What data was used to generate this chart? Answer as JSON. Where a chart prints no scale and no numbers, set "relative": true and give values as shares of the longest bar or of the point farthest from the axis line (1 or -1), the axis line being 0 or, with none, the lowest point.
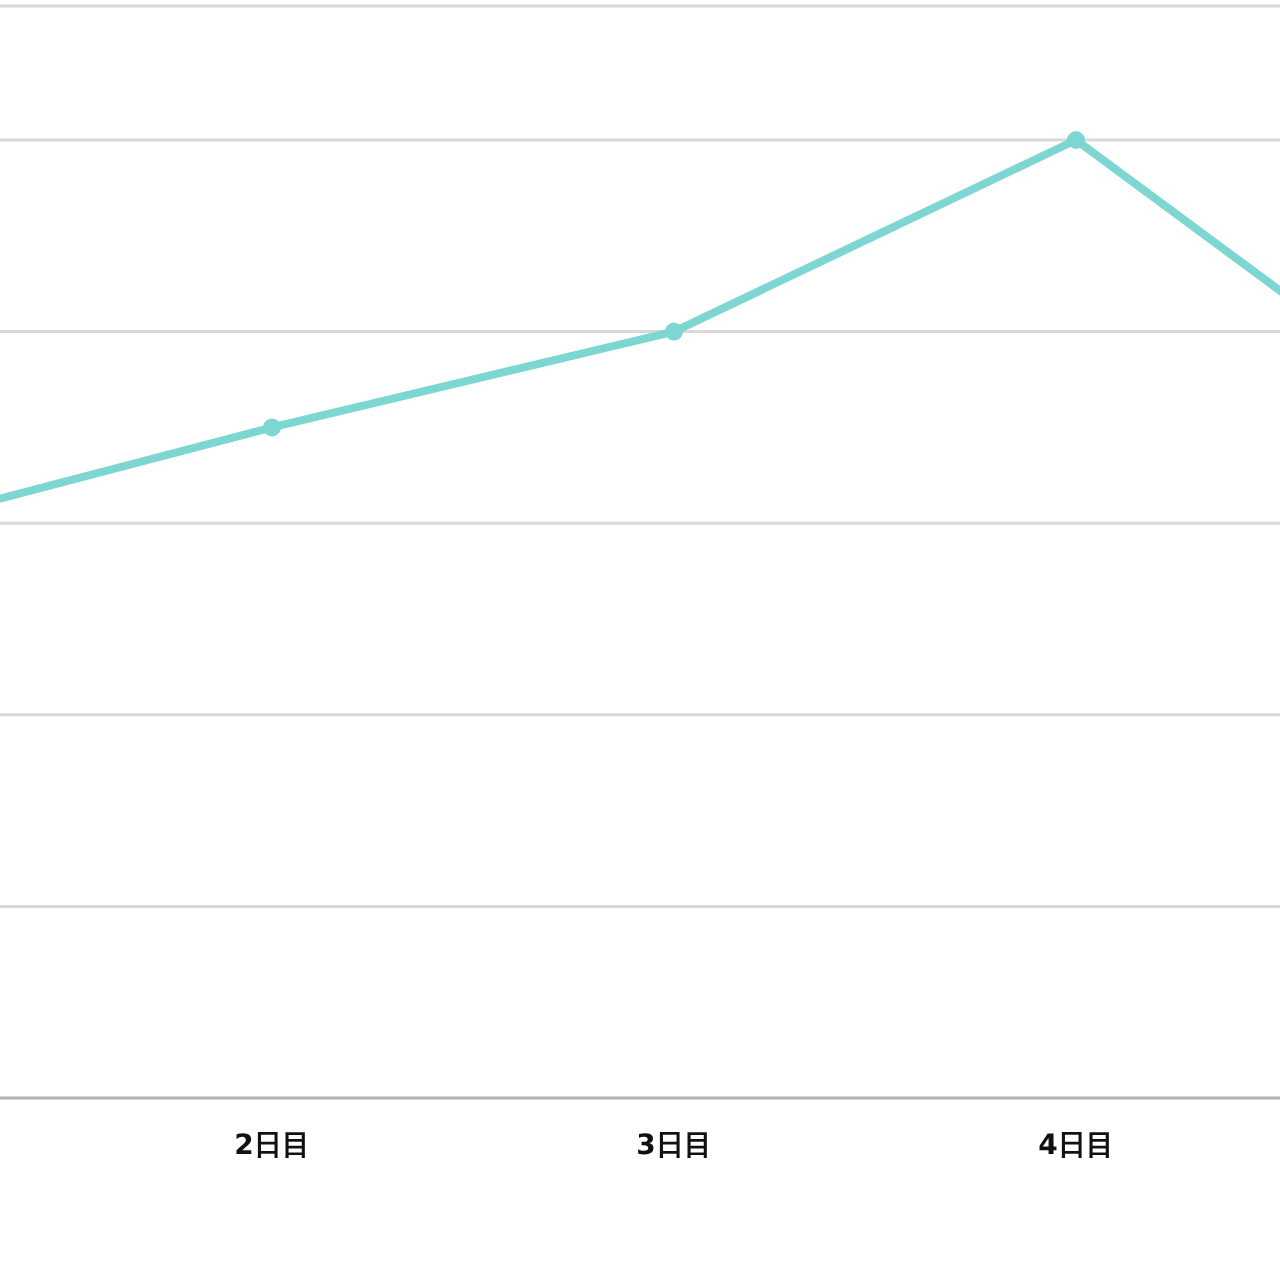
{
  "chart_data": {
    "type": "line",
    "relative": true,
    "categories": [
      null,
      "2日目",
      "3日目",
      "4日目",
      null
    ],
    "series": [
      {
        "color": "#7dd6d2",
        "values": [
          0.59,
          0.7,
          0.8,
          1.0,
          0.69
        ]
      }
    ],
    "ref_lines": [
      {
        "axis": "y",
        "value": 0.2,
        "color": "#d9d9d9"
      },
      {
        "axis": "y",
        "value": 0.4,
        "color": "#d9d9d9"
      },
      {
        "axis": "y",
        "value": 0.6,
        "color": "#d9d9d9"
      },
      {
        "axis": "y",
        "value": 0.8,
        "color": "#d9d9d9"
      },
      {
        "axis": "y",
        "value": 1.0,
        "color": "#d9d9d9"
      },
      {
        "axis": "y",
        "value": 1.14,
        "color": "#d9d9d9"
      }
    ],
    "marker": "circle",
    "line_style": "solid"
  }
}
